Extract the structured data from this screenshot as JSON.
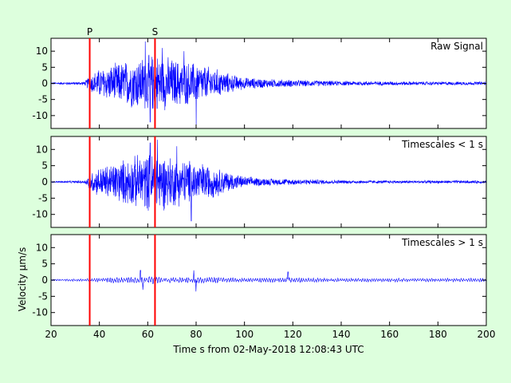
{
  "figure": {
    "xlabel": "Time s from 02-May-2018 12:08:43 UTC",
    "ylabel": "Velocity μm/s",
    "markers": [
      {
        "label": "P",
        "x": 36
      },
      {
        "label": "S",
        "x": 63
      }
    ],
    "colors": {
      "background": "#ddffdd",
      "trace": "#0000ff",
      "marker": "#ff0000",
      "axes": "#000000"
    }
  },
  "chart_data": [
    {
      "type": "line",
      "title": "Raw Signal",
      "xlim": [
        20,
        200
      ],
      "ylim": [
        -14,
        14
      ],
      "xticks": [
        20,
        40,
        60,
        80,
        100,
        120,
        140,
        160,
        180,
        200
      ],
      "yticks": [
        -10,
        -5,
        0,
        5,
        10
      ],
      "envelope": {
        "x": [
          20,
          34,
          36,
          40,
          48,
          56,
          64,
          72,
          80,
          88,
          95,
          100,
          110,
          120,
          140,
          160,
          180,
          200
        ],
        "y": [
          0.3,
          0.6,
          3,
          5,
          7,
          9,
          10,
          8,
          7,
          5,
          3,
          2,
          1.5,
          1.2,
          0.8,
          0.7,
          0.6,
          0.6
        ]
      },
      "spikes": [
        {
          "x": 59,
          "y": 13
        },
        {
          "x": 61,
          "y": -12
        },
        {
          "x": 66,
          "y": 11
        },
        {
          "x": 75,
          "y": 10
        },
        {
          "x": 80,
          "y": -13
        }
      ]
    },
    {
      "type": "line",
      "title": "Timescales < 1 s",
      "xlim": [
        20,
        200
      ],
      "ylim": [
        -14,
        14
      ],
      "xticks": [
        20,
        40,
        60,
        80,
        100,
        120,
        140,
        160,
        180,
        200
      ],
      "yticks": [
        -10,
        -5,
        0,
        5,
        10
      ],
      "envelope": {
        "x": [
          20,
          34,
          36,
          40,
          48,
          56,
          64,
          72,
          80,
          88,
          95,
          100,
          110,
          120,
          140,
          160,
          180,
          200
        ],
        "y": [
          0.2,
          0.5,
          3,
          5,
          7,
          9,
          10,
          8,
          7,
          5,
          3,
          1.8,
          1.2,
          1,
          0.6,
          0.5,
          0.5,
          0.5
        ]
      },
      "spikes": [
        {
          "x": 61,
          "y": 12
        },
        {
          "x": 64,
          "y": 13
        },
        {
          "x": 72,
          "y": 11
        },
        {
          "x": 78,
          "y": -12
        }
      ]
    },
    {
      "type": "line",
      "title": "Timescales > 1 s",
      "xlim": [
        20,
        200
      ],
      "ylim": [
        -14,
        14
      ],
      "xticks": [
        20,
        40,
        60,
        80,
        100,
        120,
        140,
        160,
        180,
        200
      ],
      "yticks": [
        -10,
        -5,
        0,
        5,
        10
      ],
      "envelope": {
        "x": [
          20,
          34,
          40,
          50,
          56,
          60,
          66,
          72,
          80,
          90,
          100,
          120,
          140,
          160,
          180,
          200
        ],
        "y": [
          0.3,
          0.4,
          0.7,
          1,
          1.3,
          1.5,
          1,
          0.9,
          1,
          0.9,
          0.7,
          0.8,
          0.6,
          0.6,
          0.6,
          0.6
        ]
      },
      "spikes": [
        {
          "x": 57,
          "y": 3
        },
        {
          "x": 58,
          "y": -3
        },
        {
          "x": 79,
          "y": 3
        },
        {
          "x": 80,
          "y": -3.5
        },
        {
          "x": 118,
          "y": 2.5
        }
      ]
    }
  ]
}
